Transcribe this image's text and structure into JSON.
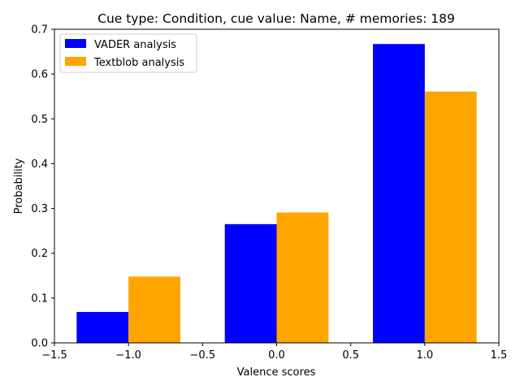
{
  "chart_data": {
    "type": "bar",
    "title": "Cue type: Condition, cue value: Name, # memories: 189",
    "xlabel": "Valence scores",
    "ylabel": "Probability",
    "xlim": [
      -1.5,
      1.5
    ],
    "ylim": [
      0,
      0.7
    ],
    "xticks": [
      "−1.5",
      "−1.0",
      "−0.5",
      "0.0",
      "0.5",
      "1.0",
      "1.5"
    ],
    "yticks": [
      "0.0",
      "0.1",
      "0.2",
      "0.3",
      "0.4",
      "0.5",
      "0.6",
      "0.7"
    ],
    "categories": [
      -1,
      0,
      1
    ],
    "bar_width": 0.35,
    "legend_position": "top-left",
    "grid": false,
    "series": [
      {
        "name": "VADER analysis",
        "color": "#0000ff",
        "values": [
          0.069,
          0.265,
          0.667
        ]
      },
      {
        "name": "Textblob analysis",
        "color": "#ffa500",
        "values": [
          0.148,
          0.291,
          0.561
        ]
      }
    ]
  }
}
